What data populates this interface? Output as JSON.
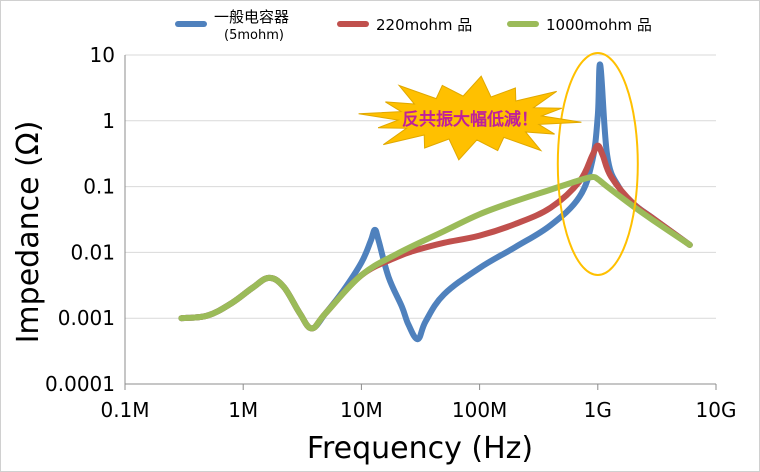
{
  "chart_data": {
    "type": "line",
    "xlabel": "Frequency (Hz)",
    "ylabel": "Impedance (Ω)",
    "x_scale": "log",
    "y_scale": "log",
    "xlim": [
      100000,
      10000000000
    ],
    "ylim": [
      0.0001,
      10
    ],
    "x_ticks": [
      {
        "value": 100000,
        "label": "0.1M"
      },
      {
        "value": 1000000,
        "label": "1M"
      },
      {
        "value": 10000000,
        "label": "10M"
      },
      {
        "value": 100000000,
        "label": "100M"
      },
      {
        "value": 1000000000,
        "label": "1G"
      },
      {
        "value": 10000000000,
        "label": "10G"
      }
    ],
    "y_ticks": [
      {
        "value": 0.0001,
        "label": "0.0001"
      },
      {
        "value": 0.001,
        "label": "0.001"
      },
      {
        "value": 0.01,
        "label": "0.01"
      },
      {
        "value": 0.1,
        "label": "0.1"
      },
      {
        "value": 1,
        "label": "1"
      },
      {
        "value": 10,
        "label": "10"
      }
    ],
    "grid": "horizontal",
    "legend_position": "top",
    "series": [
      {
        "name": "一般电容器",
        "name_sub": "(5mohm)",
        "color": "#4f81bd",
        "x": [
          300000,
          500000,
          800000,
          1200000,
          1650000,
          2200000,
          3000000,
          3800000,
          5000000,
          7000000,
          10000000,
          12000000,
          13000000,
          14000000,
          17000000,
          22000000,
          25000000,
          30000000,
          35000000,
          50000000,
          100000000,
          200000000,
          400000000,
          700000000,
          900000000,
          1000000000,
          1050000000,
          1200000000,
          1500000000,
          2000000000,
          3000000000,
          6000000000
        ],
        "y": [
          0.001,
          0.0011,
          0.0017,
          0.0029,
          0.0041,
          0.003,
          0.0012,
          0.0007,
          0.0012,
          0.0026,
          0.007,
          0.015,
          0.022,
          0.015,
          0.0042,
          0.0015,
          0.0008,
          0.00048,
          0.0009,
          0.0023,
          0.0058,
          0.012,
          0.026,
          0.07,
          0.25,
          1.2,
          7.0,
          0.3,
          0.1,
          0.055,
          0.032,
          0.013
        ]
      },
      {
        "name": "220mohm 品",
        "color": "#c0504d",
        "x": [
          300000,
          500000,
          800000,
          1200000,
          1650000,
          2200000,
          3000000,
          3800000,
          5000000,
          10000000,
          20000000,
          30000000,
          50000000,
          100000000,
          200000000,
          400000000,
          700000000,
          900000000,
          1000000000,
          1100000000,
          1300000000,
          2000000000,
          3000000000,
          6000000000
        ],
        "y": [
          0.001,
          0.0011,
          0.0017,
          0.0029,
          0.0041,
          0.003,
          0.0012,
          0.0007,
          0.0012,
          0.0045,
          0.0085,
          0.011,
          0.014,
          0.018,
          0.027,
          0.048,
          0.12,
          0.3,
          0.42,
          0.3,
          0.14,
          0.055,
          0.032,
          0.013
        ]
      },
      {
        "name": "1000mohm 品",
        "color": "#9bbb59",
        "x": [
          300000,
          500000,
          800000,
          1200000,
          1650000,
          2200000,
          3000000,
          3800000,
          5000000,
          10000000,
          20000000,
          50000000,
          100000000,
          200000000,
          400000000,
          700000000,
          900000000,
          1000000000,
          1200000000,
          2000000000,
          3000000000,
          6000000000
        ],
        "y": [
          0.001,
          0.0011,
          0.0017,
          0.0029,
          0.0041,
          0.003,
          0.0012,
          0.0007,
          0.0012,
          0.0045,
          0.0095,
          0.021,
          0.038,
          0.06,
          0.09,
          0.125,
          0.14,
          0.13,
          0.1,
          0.05,
          0.03,
          0.013
        ]
      }
    ],
    "annotations": [
      {
        "text": "反共振大幅低減！",
        "style": "starburst",
        "fill": "#ffc000",
        "text_color": "#c0209a"
      },
      {
        "style": "ellipse",
        "stroke": "#ffc000",
        "highlight_frequency": 1000000000
      }
    ]
  }
}
